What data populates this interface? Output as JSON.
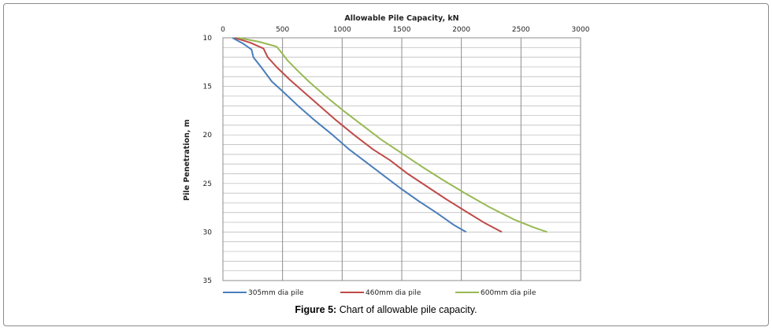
{
  "caption": {
    "label": "Figure 5:",
    "text": " Chart of allowable pile capacity."
  },
  "chart_data": {
    "type": "line",
    "title": "Allowable Pile Capacity, kN",
    "xlabel": "Allowable Pile Capacity, kN",
    "ylabel": "Pile Penetration, m",
    "x_axis_position": "top",
    "y_inverted": true,
    "xlim": [
      0,
      3000
    ],
    "ylim": [
      10,
      35
    ],
    "x_ticks": [
      0,
      500,
      1000,
      1500,
      2000,
      2500,
      3000
    ],
    "y_ticks": [
      10,
      15,
      20,
      25,
      30,
      35
    ],
    "grid": {
      "major_vertical": true,
      "horizontal_minor_step": 1
    },
    "legend_position": "bottom",
    "series": [
      {
        "name": "305mm dia pile",
        "color": "#4a7ebb",
        "points": [
          [
            80,
            10
          ],
          [
            170,
            10.6
          ],
          [
            240,
            11.2
          ],
          [
            255,
            12
          ],
          [
            320,
            13
          ],
          [
            410,
            14.5
          ],
          [
            500,
            15.5
          ],
          [
            630,
            17
          ],
          [
            770,
            18.5
          ],
          [
            920,
            20
          ],
          [
            1060,
            21.5
          ],
          [
            1200,
            22.8
          ],
          [
            1350,
            24.2
          ],
          [
            1490,
            25.5
          ],
          [
            1640,
            26.8
          ],
          [
            1790,
            28
          ],
          [
            1940,
            29.3
          ],
          [
            2040,
            30
          ]
        ]
      },
      {
        "name": "460mm dia pile",
        "color": "#be4b48",
        "points": [
          [
            100,
            10
          ],
          [
            230,
            10.5
          ],
          [
            340,
            11.1
          ],
          [
            375,
            12
          ],
          [
            450,
            13
          ],
          [
            560,
            14.3
          ],
          [
            680,
            15.6
          ],
          [
            810,
            17
          ],
          [
            950,
            18.5
          ],
          [
            1100,
            20
          ],
          [
            1260,
            21.5
          ],
          [
            1400,
            22.6
          ],
          [
            1550,
            24
          ],
          [
            1710,
            25.3
          ],
          [
            1870,
            26.6
          ],
          [
            2040,
            27.9
          ],
          [
            2200,
            29.1
          ],
          [
            2340,
            30
          ]
        ]
      },
      {
        "name": "600mm dia pile",
        "color": "#98b954",
        "points": [
          [
            130,
            10
          ],
          [
            300,
            10.4
          ],
          [
            450,
            10.9
          ],
          [
            490,
            11.5
          ],
          [
            540,
            12.3
          ],
          [
            620,
            13.3
          ],
          [
            720,
            14.5
          ],
          [
            860,
            16
          ],
          [
            1010,
            17.5
          ],
          [
            1170,
            19
          ],
          [
            1330,
            20.5
          ],
          [
            1490,
            21.8
          ],
          [
            1660,
            23.2
          ],
          [
            1840,
            24.6
          ],
          [
            2030,
            26
          ],
          [
            2230,
            27.4
          ],
          [
            2440,
            28.7
          ],
          [
            2600,
            29.5
          ],
          [
            2720,
            30
          ]
        ]
      }
    ]
  }
}
